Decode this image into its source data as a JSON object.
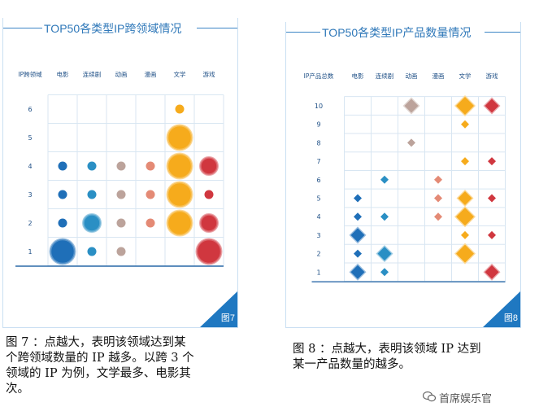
{
  "chart_data": [
    {
      "type": "scatter",
      "title": "TOP50各类型IP跨领域情况",
      "figure_label": "图7",
      "row_header": "IP跨领域",
      "categories": [
        "电影",
        "连续剧",
        "动画",
        "漫画",
        "文学",
        "游戏"
      ],
      "rows": [
        "6",
        "5",
        "4",
        "3",
        "2",
        "1"
      ],
      "marker": "circle",
      "colors": {
        "电影": "#1f6fb8",
        "连续剧": "#2a8fc4",
        "动画": "#bca39b",
        "漫画": "#e48a75",
        "文学": "#f6ab1c",
        "游戏": "#d0373f"
      },
      "points": [
        {
          "category": "文学",
          "row": "6",
          "size": 1
        },
        {
          "category": "文学",
          "row": "5",
          "size": 3
        },
        {
          "category": "电影",
          "row": "4",
          "size": 1
        },
        {
          "category": "连续剧",
          "row": "4",
          "size": 1
        },
        {
          "category": "动画",
          "row": "4",
          "size": 1
        },
        {
          "category": "漫画",
          "row": "4",
          "size": 1
        },
        {
          "category": "文学",
          "row": "4",
          "size": 4
        },
        {
          "category": "游戏",
          "row": "4",
          "size": 2
        },
        {
          "category": "电影",
          "row": "3",
          "size": 1
        },
        {
          "category": "连续剧",
          "row": "3",
          "size": 1
        },
        {
          "category": "动画",
          "row": "3",
          "size": 1
        },
        {
          "category": "漫画",
          "row": "3",
          "size": 1
        },
        {
          "category": "文学",
          "row": "3",
          "size": 4
        },
        {
          "category": "游戏",
          "row": "3",
          "size": 1
        },
        {
          "category": "电影",
          "row": "2",
          "size": 1
        },
        {
          "category": "连续剧",
          "row": "2",
          "size": 2
        },
        {
          "category": "动画",
          "row": "2",
          "size": 1
        },
        {
          "category": "漫画",
          "row": "2",
          "size": 1
        },
        {
          "category": "文学",
          "row": "2",
          "size": 3
        },
        {
          "category": "游戏",
          "row": "2",
          "size": 2
        },
        {
          "category": "电影",
          "row": "1",
          "size": 3
        },
        {
          "category": "连续剧",
          "row": "1",
          "size": 1
        },
        {
          "category": "动画",
          "row": "1",
          "size": 1
        },
        {
          "category": "游戏",
          "row": "1",
          "size": 3
        }
      ]
    },
    {
      "type": "scatter",
      "title": "TOP50各类型IP产品数量情况",
      "figure_label": "图8",
      "row_header": "IP产品总数",
      "categories": [
        "电影",
        "连续剧",
        "动画",
        "漫画",
        "文学",
        "游戏"
      ],
      "rows": [
        "10",
        "9",
        "8",
        "7",
        "6",
        "5",
        "4",
        "3",
        "2",
        "1"
      ],
      "marker": "diamond",
      "colors": {
        "电影": "#1f6fb8",
        "连续剧": "#2a8fc4",
        "动画": "#bca39b",
        "漫画": "#e48a75",
        "文学": "#f6ab1c",
        "游戏": "#d0373f"
      },
      "points": [
        {
          "category": "动画",
          "row": "10",
          "size": 2
        },
        {
          "category": "文学",
          "row": "10",
          "size": 3
        },
        {
          "category": "游戏",
          "row": "10",
          "size": 2
        },
        {
          "category": "文学",
          "row": "9",
          "size": 1
        },
        {
          "category": "动画",
          "row": "8",
          "size": 1
        },
        {
          "category": "文学",
          "row": "7",
          "size": 1
        },
        {
          "category": "游戏",
          "row": "7",
          "size": 1
        },
        {
          "category": "连续剧",
          "row": "6",
          "size": 1
        },
        {
          "category": "漫画",
          "row": "6",
          "size": 1
        },
        {
          "category": "电影",
          "row": "5",
          "size": 1
        },
        {
          "category": "漫画",
          "row": "5",
          "size": 1
        },
        {
          "category": "文学",
          "row": "5",
          "size": 2
        },
        {
          "category": "游戏",
          "row": "5",
          "size": 1
        },
        {
          "category": "电影",
          "row": "4",
          "size": 1
        },
        {
          "category": "连续剧",
          "row": "4",
          "size": 1
        },
        {
          "category": "漫画",
          "row": "4",
          "size": 1
        },
        {
          "category": "文学",
          "row": "4",
          "size": 3
        },
        {
          "category": "电影",
          "row": "3",
          "size": 2
        },
        {
          "category": "文学",
          "row": "3",
          "size": 1
        },
        {
          "category": "游戏",
          "row": "3",
          "size": 1
        },
        {
          "category": "电影",
          "row": "2",
          "size": 1
        },
        {
          "category": "连续剧",
          "row": "2",
          "size": 2
        },
        {
          "category": "文学",
          "row": "2",
          "size": 3
        },
        {
          "category": "电影",
          "row": "1",
          "size": 2
        },
        {
          "category": "连续剧",
          "row": "1",
          "size": 1
        },
        {
          "category": "游戏",
          "row": "1",
          "size": 2
        }
      ]
    }
  ],
  "captions": {
    "fig7": [
      "图 7 ：点越大，表明该领域达到某",
      "个跨领域数量的 IP 越多。以跨 3 个",
      "领域的 IP 为例，文学最多、电影其",
      "次。"
    ],
    "fig8": [
      "图 8 ：点越大，表明该领域 IP 达到",
      "某一产品数量的越多。"
    ]
  },
  "watermark": "首席娱乐官"
}
